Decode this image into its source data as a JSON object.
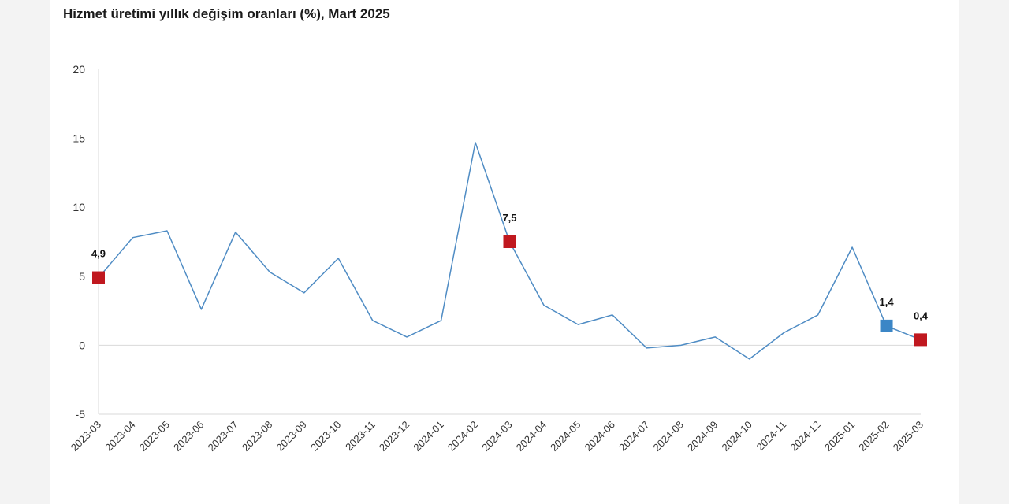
{
  "chart_data": {
    "type": "line",
    "title": "Hizmet üretimi yıllık değişim oranları (%), Mart 2025",
    "xlabel": "",
    "ylabel": "",
    "ylim": [
      -5,
      20
    ],
    "yticks": [
      20,
      15,
      10,
      5,
      0,
      -5
    ],
    "x": [
      "2023-03",
      "2023-04",
      "2023-05",
      "2023-06",
      "2023-07",
      "2023-08",
      "2023-09",
      "2023-10",
      "2023-11",
      "2023-12",
      "2024-01",
      "2024-02",
      "2024-03",
      "2024-04",
      "2024-05",
      "2024-06",
      "2024-07",
      "2024-08",
      "2024-09",
      "2024-10",
      "2024-11",
      "2024-12",
      "2025-01",
      "2025-02",
      "2025-03"
    ],
    "series": [
      {
        "values": [
          4.9,
          7.8,
          8.3,
          2.6,
          8.2,
          5.3,
          3.8,
          6.3,
          1.8,
          0.6,
          1.8,
          14.7,
          7.5,
          2.9,
          1.5,
          2.2,
          -0.2,
          0.0,
          0.6,
          -1.0,
          0.9,
          2.2,
          7.1,
          1.4,
          0.4
        ],
        "color": "#4f8cc4"
      }
    ],
    "highlights": [
      {
        "index": 0,
        "label": "4,9",
        "color": "#c0181f"
      },
      {
        "index": 12,
        "label": "7,5",
        "color": "#c0181f"
      },
      {
        "index": 23,
        "label": "1,4",
        "color": "#3b86c6"
      },
      {
        "index": 24,
        "label": "0,4",
        "color": "#c0181f"
      }
    ],
    "grid": false,
    "zero_line": true
  }
}
